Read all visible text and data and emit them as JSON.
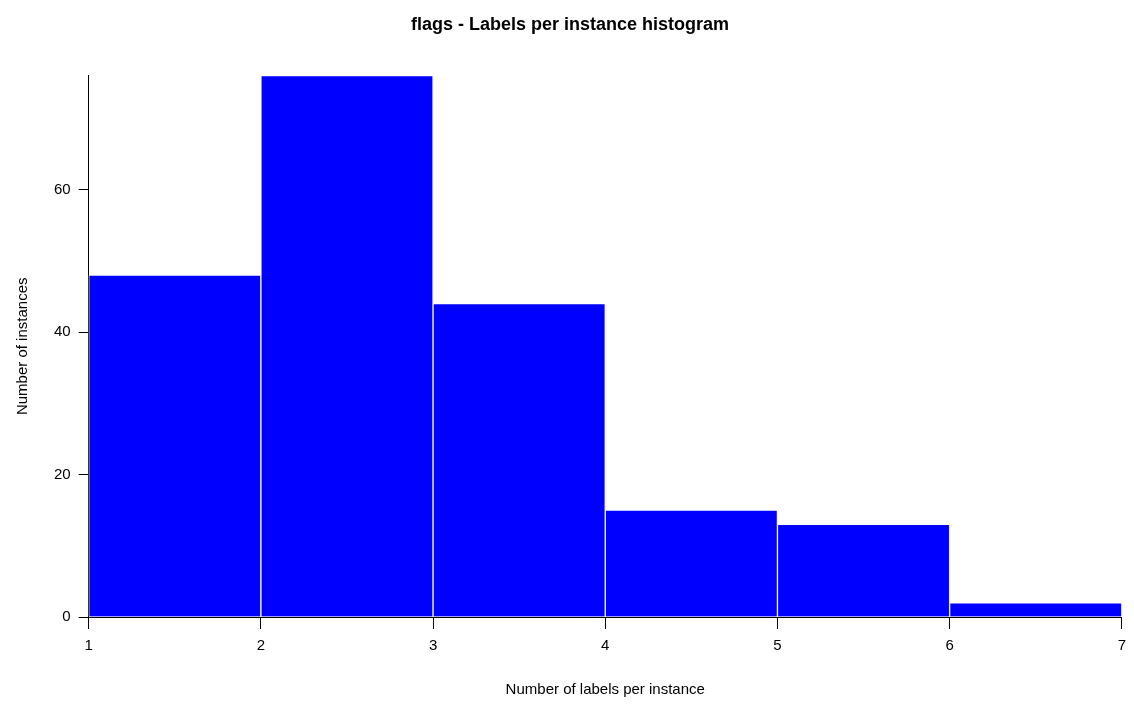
{
  "chart_data": {
    "type": "histogram",
    "title": "flags - Labels per instance histogram",
    "xlabel": "Number of labels per instance",
    "ylabel": "Number of instances",
    "bins": [
      1,
      2,
      3,
      4,
      5,
      6,
      7
    ],
    "values": [
      48,
      76,
      44,
      15,
      13,
      2
    ],
    "color": "#0000ff",
    "xlim": [
      1,
      7
    ],
    "xticks": [
      1,
      2,
      3,
      4,
      5,
      6,
      7
    ],
    "ylim": [
      0,
      76
    ],
    "yticks": [
      0,
      20,
      40,
      60
    ],
    "grid": false,
    "legend": false
  }
}
